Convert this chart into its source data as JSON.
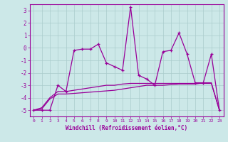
{
  "xlabel": "Windchill (Refroidissement éolien,°C)",
  "background_color": "#cce8e8",
  "line_color": "#990099",
  "grid_color": "#aacccc",
  "xlim": [
    -0.5,
    23.5
  ],
  "ylim": [
    -5.5,
    3.5
  ],
  "xticks": [
    0,
    1,
    2,
    3,
    4,
    5,
    6,
    7,
    8,
    9,
    10,
    11,
    12,
    13,
    14,
    15,
    16,
    17,
    18,
    19,
    20,
    21,
    22,
    23
  ],
  "yticks": [
    -5,
    -4,
    -3,
    -2,
    -1,
    0,
    1,
    2,
    3
  ],
  "series1_x": [
    0,
    1,
    2,
    3,
    4,
    5,
    6,
    7,
    8,
    9,
    10,
    11,
    12,
    13,
    14,
    15,
    16,
    17,
    18,
    19,
    20,
    21,
    22,
    23
  ],
  "series1_y": [
    -5.0,
    -5.0,
    -5.0,
    -3.0,
    -3.5,
    -0.2,
    -0.1,
    -0.1,
    0.3,
    -1.2,
    -1.5,
    -1.8,
    3.3,
    -2.2,
    -2.5,
    -3.0,
    -0.3,
    -0.2,
    1.2,
    -0.5,
    -2.8,
    -2.8,
    -0.5,
    -5.0
  ],
  "series2_x": [
    0,
    1,
    2,
    3,
    4,
    5,
    6,
    7,
    8,
    9,
    10,
    11,
    12,
    13,
    14,
    15,
    16,
    17,
    18,
    19,
    20,
    21,
    22,
    23
  ],
  "series2_y": [
    -5.0,
    -4.8,
    -4.0,
    -3.5,
    -3.5,
    -3.4,
    -3.3,
    -3.2,
    -3.1,
    -3.0,
    -3.0,
    -2.9,
    -2.85,
    -2.85,
    -2.85,
    -2.85,
    -2.85,
    -2.85,
    -2.85,
    -2.85,
    -2.85,
    -2.85,
    -2.85,
    -5.0
  ],
  "series3_x": [
    0,
    1,
    2,
    3,
    4,
    5,
    6,
    7,
    8,
    9,
    10,
    11,
    12,
    13,
    14,
    15,
    16,
    17,
    18,
    19,
    20,
    21,
    22,
    23
  ],
  "series3_y": [
    -5.0,
    -4.9,
    -4.1,
    -3.7,
    -3.7,
    -3.65,
    -3.6,
    -3.55,
    -3.5,
    -3.45,
    -3.4,
    -3.3,
    -3.2,
    -3.1,
    -3.0,
    -3.0,
    -3.0,
    -2.95,
    -2.9,
    -2.9,
    -2.9,
    -2.8,
    -2.8,
    -5.0
  ]
}
